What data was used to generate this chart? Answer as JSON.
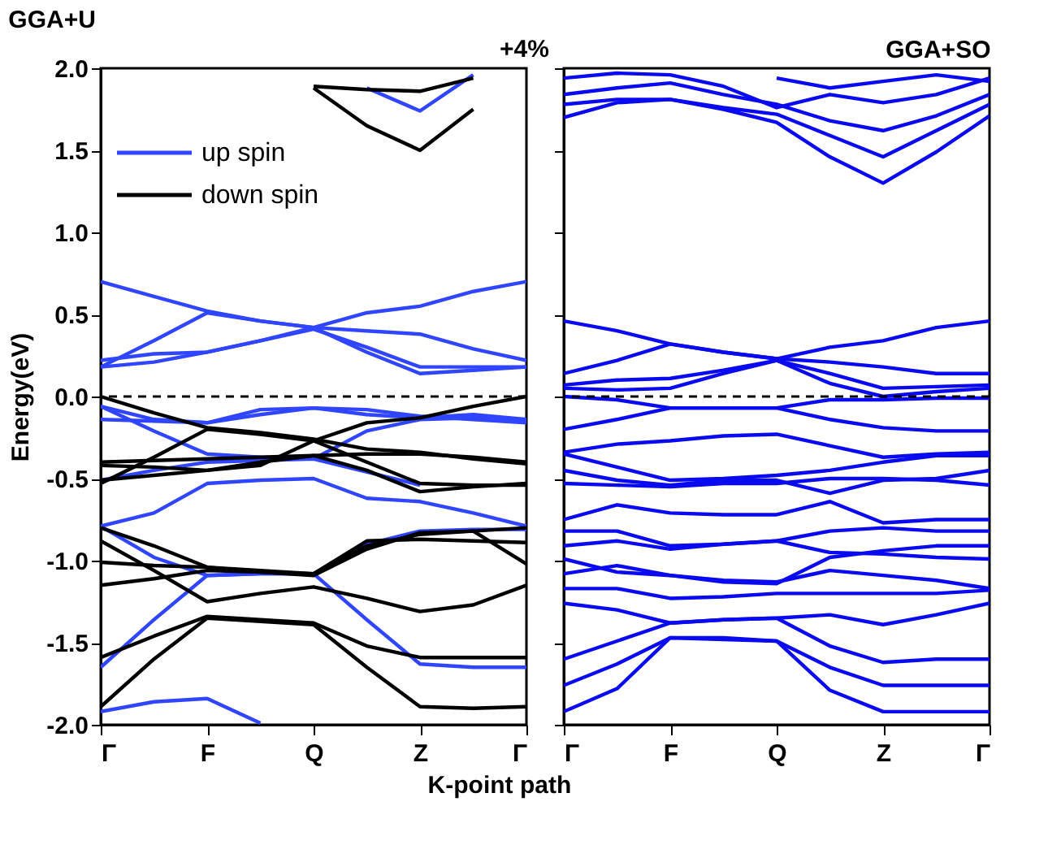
{
  "chart_data": [
    {
      "type": "line",
      "title": "GGA+U",
      "xlabel": "K-point path",
      "ylabel": "Energy(eV)",
      "annotations": [
        "+4%"
      ],
      "categories": [
        "Γ",
        null,
        "F",
        null,
        "Q",
        null,
        "Z",
        null,
        "Γ"
      ],
      "ylim": [
        -2,
        2
      ],
      "yticks": [
        {
          "value": -2,
          "label": "-2.0"
        },
        {
          "value": -1.5,
          "label": "-1.5"
        },
        {
          "value": -1,
          "label": "-1.0"
        },
        {
          "value": -0.5,
          "label": "-0.5"
        },
        {
          "value": 0,
          "label": "0.0"
        },
        {
          "value": 0.5,
          "label": "0.5"
        },
        {
          "value": 1,
          "label": "1.0"
        },
        {
          "value": 1.5,
          "label": "1.5"
        },
        {
          "value": 2,
          "label": "2.0"
        }
      ],
      "grid": false,
      "legend": "top left",
      "marker": "none",
      "line_style": "solid",
      "ref_lines": [
        {
          "axis": "y",
          "value": 0,
          "label": null,
          "color": "#000000",
          "line_style": "dashed"
        }
      ],
      "series": [
        {
          "name": "up spin",
          "color": "#2f45ff",
          "values": [
            0.7,
            0.61,
            0.52,
            0.46,
            0.42,
            0.51,
            0.55,
            0.64,
            0.7
          ]
        },
        {
          "color": "#2f45ff",
          "values": [
            0.18,
            0.34,
            0.51,
            0.46,
            0.42,
            0.4,
            0.38,
            0.29,
            0.22
          ]
        },
        {
          "color": "#2f45ff",
          "values": [
            0.22,
            0.26,
            0.27,
            0.34,
            0.41,
            0.3,
            0.18,
            0.18,
            0.18
          ]
        },
        {
          "color": "#2f45ff",
          "values": [
            0.18,
            0.21,
            0.27,
            0.34,
            0.42,
            0.27,
            0.14,
            0.16,
            0.18
          ]
        },
        {
          "color": "#2f45ff",
          "values": [
            null,
            null,
            null,
            null,
            null,
            1.88,
            1.74,
            1.96,
            null
          ]
        },
        {
          "color": "#2f45ff",
          "values": [
            -0.06,
            -0.14,
            -0.16,
            -0.08,
            -0.07,
            -0.08,
            -0.12,
            -0.14,
            -0.16
          ]
        },
        {
          "color": "#2f45ff",
          "values": [
            -0.14,
            -0.15,
            -0.16,
            -0.11,
            -0.07,
            -0.11,
            -0.13,
            -0.11,
            -0.14
          ]
        },
        {
          "color": "#2f45ff",
          "values": [
            -0.06,
            -0.21,
            -0.35,
            -0.37,
            -0.38,
            -0.21,
            -0.14,
            -0.13,
            -0.14
          ]
        },
        {
          "color": "#2f45ff",
          "values": [
            -0.79,
            -0.71,
            -0.53,
            -0.51,
            -0.5,
            -0.62,
            -0.64,
            -0.71,
            -0.79
          ]
        },
        {
          "color": "#2f45ff",
          "values": [
            -0.51,
            -0.45,
            -0.4,
            -0.39,
            -0.38,
            -0.46,
            -0.54,
            null,
            null
          ]
        },
        {
          "color": "#2f45ff",
          "values": [
            -0.79,
            -0.98,
            -1.09,
            -1.08,
            -1.08,
            -0.9,
            -0.82,
            -0.81,
            -0.81
          ]
        },
        {
          "color": "#2f45ff",
          "values": [
            -1.65,
            -1.36,
            -1.09,
            -1.08,
            -1.08,
            -1.36,
            -1.63,
            -1.65,
            -1.65
          ]
        },
        {
          "color": "#2f45ff",
          "values": [
            -1.92,
            -1.86,
            -1.84,
            -1.99,
            null,
            null,
            null,
            null,
            null
          ]
        },
        {
          "name": "down spin",
          "color": "#000000",
          "values": [
            0.0,
            -0.1,
            -0.19,
            -0.22,
            -0.26,
            -0.32,
            -0.34,
            -0.38,
            -0.41
          ]
        },
        {
          "color": "#000000",
          "values": [
            null,
            null,
            null,
            null,
            1.89,
            1.87,
            1.86,
            1.94,
            null
          ]
        },
        {
          "color": "#000000",
          "values": [
            null,
            null,
            null,
            null,
            1.88,
            1.65,
            1.5,
            1.75,
            null
          ]
        },
        {
          "color": "#000000",
          "values": [
            -0.53,
            -0.37,
            -0.2,
            -0.23,
            -0.27,
            -0.16,
            -0.13,
            -0.06,
            0.0
          ]
        },
        {
          "color": "#000000",
          "values": [
            -0.4,
            -0.39,
            -0.38,
            -0.37,
            -0.36,
            -0.35,
            -0.35,
            -0.37,
            -0.4
          ]
        },
        {
          "color": "#000000",
          "values": [
            -0.42,
            -0.43,
            -0.45,
            -0.42,
            -0.27,
            -0.4,
            -0.53,
            -0.54,
            -0.54
          ]
        },
        {
          "color": "#000000",
          "values": [
            -0.51,
            -0.48,
            -0.45,
            -0.4,
            -0.36,
            -0.45,
            -0.58,
            -0.55,
            -0.53
          ]
        },
        {
          "color": "#000000",
          "values": [
            -0.8,
            -0.91,
            -1.04,
            -1.07,
            -1.08,
            -0.91,
            -0.84,
            -0.82,
            -0.8
          ]
        },
        {
          "color": "#000000",
          "values": [
            -0.88,
            -1.06,
            -1.25,
            -1.2,
            -1.16,
            -1.23,
            -1.31,
            -1.27,
            -1.15
          ]
        },
        {
          "color": "#000000",
          "values": [
            -1.01,
            -1.03,
            -1.04,
            -1.06,
            -1.08,
            -0.88,
            -0.87,
            -0.88,
            -0.89
          ]
        },
        {
          "color": "#000000",
          "values": [
            -1.15,
            -1.11,
            -1.06,
            -1.07,
            -1.09,
            -0.93,
            -0.83,
            -0.82,
            -1.02
          ]
        },
        {
          "color": "#000000",
          "values": [
            -1.59,
            -1.46,
            -1.34,
            -1.36,
            -1.38,
            -1.52,
            -1.59,
            -1.59,
            -1.59
          ]
        },
        {
          "color": "#000000",
          "values": [
            -1.89,
            -1.6,
            -1.35,
            -1.37,
            -1.39,
            -1.65,
            -1.89,
            -1.9,
            -1.89
          ]
        }
      ]
    },
    {
      "type": "line",
      "title": "GGA+SO",
      "categories": [
        "Γ",
        null,
        "F",
        null,
        "Q",
        null,
        "Z",
        null,
        "Γ"
      ],
      "ylim": [
        -2,
        2
      ],
      "yticks": [
        {
          "value": -2,
          "label": null
        },
        {
          "value": -1.5,
          "label": null
        },
        {
          "value": -1,
          "label": null
        },
        {
          "value": -0.5,
          "label": null
        },
        {
          "value": 0,
          "label": null
        },
        {
          "value": 0.5,
          "label": null
        },
        {
          "value": 1,
          "label": null
        },
        {
          "value": 1.5,
          "label": null
        },
        {
          "value": 2,
          "label": null
        }
      ],
      "tick_labels": "x",
      "grid": false,
      "marker": "none",
      "line_style": "solid",
      "ref_lines": [
        {
          "axis": "y",
          "value": 0,
          "label": null,
          "color": "#000000",
          "line_style": "dashed"
        }
      ],
      "series": [
        {
          "color": "#0a0af0",
          "values": [
            0.46,
            0.4,
            0.32,
            0.27,
            0.23,
            0.3,
            0.34,
            0.42,
            0.46
          ]
        },
        {
          "color": "#0a0af0",
          "values": [
            0.14,
            0.22,
            0.32,
            0.27,
            0.23,
            0.21,
            0.18,
            0.14,
            0.14
          ]
        },
        {
          "color": "#0a0af0",
          "values": [
            0.07,
            0.1,
            0.11,
            0.16,
            0.22,
            0.14,
            0.05,
            0.06,
            0.07
          ]
        },
        {
          "color": "#0a0af0",
          "values": [
            0.05,
            0.04,
            0.05,
            0.14,
            0.22,
            0.08,
            0.0,
            0.03,
            0.05
          ]
        },
        {
          "color": "#0a0af0",
          "values": [
            1.7,
            1.79,
            1.81,
            1.75,
            1.67,
            1.46,
            1.3,
            1.49,
            1.71
          ]
        },
        {
          "color": "#0a0af0",
          "values": [
            1.78,
            1.81,
            1.81,
            1.76,
            1.72,
            1.59,
            1.46,
            1.62,
            1.78
          ]
        },
        {
          "color": "#0a0af0",
          "values": [
            1.84,
            1.88,
            1.91,
            1.84,
            1.78,
            1.68,
            1.62,
            1.71,
            1.84
          ]
        },
        {
          "color": "#0a0af0",
          "values": [
            1.94,
            1.97,
            1.96,
            1.89,
            1.76,
            1.84,
            1.79,
            1.84,
            1.94
          ]
        },
        {
          "color": "#0a0af0",
          "values": [
            null,
            null,
            null,
            null,
            1.94,
            1.88,
            1.92,
            1.96,
            1.92
          ]
        },
        {
          "color": "#0a0af0",
          "values": [
            0.0,
            -0.02,
            -0.07,
            -0.07,
            -0.07,
            -0.02,
            -0.02,
            -0.01,
            -0.01
          ]
        },
        {
          "color": "#0a0af0",
          "values": [
            -0.2,
            -0.14,
            -0.07,
            -0.07,
            -0.07,
            -0.14,
            -0.19,
            -0.21,
            -0.21
          ]
        },
        {
          "color": "#0a0af0",
          "values": [
            -0.34,
            -0.29,
            -0.27,
            -0.24,
            -0.23,
            -0.3,
            -0.37,
            -0.35,
            -0.34
          ]
        },
        {
          "color": "#0a0af0",
          "values": [
            -0.35,
            -0.43,
            -0.51,
            -0.5,
            -0.48,
            -0.45,
            -0.4,
            -0.36,
            -0.36
          ]
        },
        {
          "color": "#0a0af0",
          "values": [
            -0.45,
            -0.51,
            -0.54,
            -0.51,
            -0.51,
            -0.59,
            -0.51,
            -0.5,
            -0.45
          ]
        },
        {
          "color": "#0a0af0",
          "values": [
            -0.53,
            -0.54,
            -0.55,
            -0.53,
            -0.53,
            -0.5,
            -0.5,
            -0.51,
            -0.54
          ]
        },
        {
          "color": "#0a0af0",
          "values": [
            -0.75,
            -0.66,
            -0.71,
            -0.72,
            -0.72,
            -0.64,
            -0.77,
            -0.75,
            -0.75
          ]
        },
        {
          "color": "#0a0af0",
          "values": [
            -0.82,
            -0.82,
            -0.91,
            -0.9,
            -0.88,
            -0.82,
            -0.8,
            -0.82,
            -0.82
          ]
        },
        {
          "color": "#0a0af0",
          "values": [
            -0.91,
            -0.88,
            -0.93,
            -0.9,
            -0.88,
            -0.95,
            -0.96,
            -0.98,
            -0.99
          ]
        },
        {
          "color": "#0a0af0",
          "values": [
            -0.99,
            -1.07,
            -1.09,
            -1.12,
            -1.13,
            -1.06,
            -1.09,
            -1.12,
            -1.17
          ]
        },
        {
          "color": "#0a0af0",
          "values": [
            -1.08,
            -1.03,
            -1.09,
            -1.13,
            -1.14,
            -0.98,
            -0.94,
            -0.91,
            -0.91
          ]
        },
        {
          "color": "#0a0af0",
          "values": [
            -1.17,
            -1.17,
            -1.23,
            -1.22,
            -1.2,
            -1.2,
            -1.2,
            -1.2,
            -1.18
          ]
        },
        {
          "color": "#0a0af0",
          "values": [
            -1.26,
            -1.3,
            -1.38,
            -1.36,
            -1.35,
            -1.33,
            -1.39,
            -1.33,
            -1.26
          ]
        },
        {
          "color": "#0a0af0",
          "values": [
            -1.6,
            -1.49,
            -1.38,
            -1.36,
            -1.35,
            -1.52,
            -1.62,
            -1.6,
            -1.6
          ]
        },
        {
          "color": "#0a0af0",
          "values": [
            -1.76,
            -1.63,
            -1.47,
            -1.47,
            -1.49,
            -1.65,
            -1.76,
            -1.76,
            -1.76
          ]
        },
        {
          "color": "#0a0af0",
          "values": [
            -1.92,
            -1.78,
            -1.47,
            -1.48,
            -1.49,
            -1.79,
            -1.92,
            -1.92,
            -1.92
          ]
        }
      ]
    }
  ]
}
